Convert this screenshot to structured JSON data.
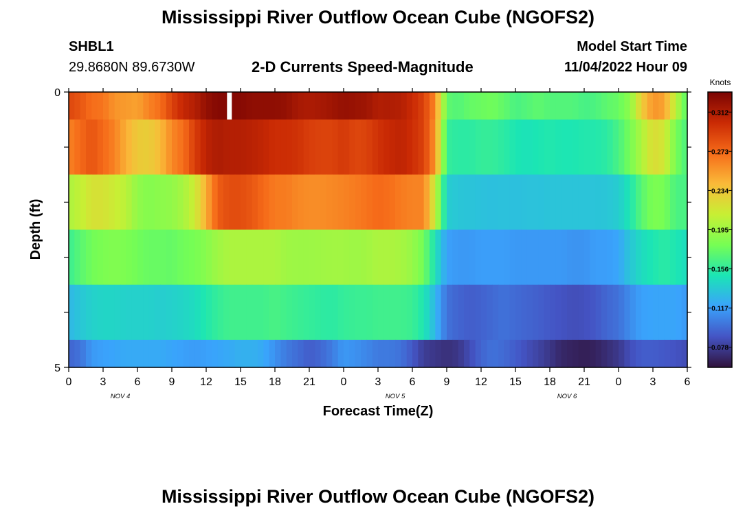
{
  "header": {
    "title": "Mississippi River Outflow Ocean Cube (NGOFS2)",
    "station_id": "SHBL1",
    "coordinates": "29.8680N  89.6730W",
    "plot_title": "2-D Currents Speed-Magnitude",
    "model_start_label": "Model Start Time",
    "model_start_value": "11/04/2022 Hour 09"
  },
  "footer": {
    "title": "Mississippi River Outflow Ocean Cube (NGOFS2)"
  },
  "chart_data": {
    "type": "heatmap",
    "xlabel": "Forecast Time(Z)",
    "ylabel": "Depth (ft)",
    "ylim": [
      0,
      5
    ],
    "y_ticks": [
      "0",
      "5"
    ],
    "x_tick_labels": [
      "0",
      "3",
      "6",
      "9",
      "12",
      "15",
      "18",
      "21",
      "0",
      "3",
      "6",
      "9",
      "12",
      "15",
      "18",
      "21",
      "0",
      "3",
      "6"
    ],
    "date_labels": [
      {
        "label": "NOV 4",
        "tick_index": 1.5
      },
      {
        "label": "NOV 5",
        "tick_index": 9.5
      },
      {
        "label": "NOV 6",
        "tick_index": 14.5
      }
    ],
    "x_unit_hours": 3,
    "x_range_hours": [
      0,
      54
    ],
    "y_band_edges": [
      0,
      0.5,
      1.5,
      2.5,
      3.5,
      4.5,
      5
    ],
    "color_scale": {
      "label": "Knots",
      "ticks": [
        "0.312",
        "0.273",
        "0.234",
        "0.195",
        "0.156",
        "0.117",
        "0.078"
      ],
      "tick_values": [
        0.312,
        0.273,
        0.234,
        0.195,
        0.156,
        0.117,
        0.078
      ],
      "range": [
        0.058,
        0.332
      ],
      "colors": [
        "#30123b",
        "#4454c4",
        "#3aa3fc",
        "#1be5b5",
        "#76fe54",
        "#c8ef34",
        "#faba39",
        "#f66b19",
        "#ca2a04",
        "#7a0403"
      ]
    },
    "missing_value_marker": {
      "x_hours": 14,
      "band": 0
    },
    "keyframes_hours": [
      0,
      1,
      2,
      3,
      4,
      5,
      6,
      7,
      8,
      9,
      10,
      11,
      12,
      13,
      14,
      15,
      16,
      17,
      18,
      19,
      20,
      21,
      22,
      23,
      24,
      25,
      26,
      27,
      28,
      29,
      30,
      31,
      32,
      33,
      34,
      35,
      36,
      37,
      38,
      39,
      40,
      41,
      42,
      43,
      44,
      45,
      46,
      47,
      48,
      49,
      50,
      51,
      52,
      53,
      54
    ],
    "bands": [
      [
        0.288,
        0.281,
        0.27,
        0.268,
        0.255,
        0.253,
        0.25,
        0.262,
        0.27,
        0.29,
        0.304,
        0.31,
        0.322,
        0.328,
        0.328,
        0.327,
        0.324,
        0.324,
        0.324,
        0.322,
        0.315,
        0.313,
        0.315,
        0.318,
        0.322,
        0.32,
        0.318,
        0.311,
        0.312,
        0.31,
        0.302,
        0.29,
        0.26,
        0.172,
        0.168,
        0.174,
        0.176,
        0.178,
        0.173,
        0.165,
        0.168,
        0.172,
        0.168,
        0.168,
        0.168,
        0.164,
        0.166,
        0.172,
        0.175,
        0.188,
        0.23,
        0.255,
        0.25,
        0.205,
        0.168
      ],
      [
        0.262,
        0.272,
        0.282,
        0.272,
        0.262,
        0.245,
        0.232,
        0.23,
        0.24,
        0.26,
        0.27,
        0.292,
        0.307,
        0.313,
        0.31,
        0.31,
        0.308,
        0.305,
        0.3,
        0.3,
        0.298,
        0.292,
        0.29,
        0.29,
        0.295,
        0.288,
        0.29,
        0.298,
        0.303,
        0.306,
        0.3,
        0.29,
        0.255,
        0.158,
        0.155,
        0.155,
        0.158,
        0.158,
        0.155,
        0.15,
        0.148,
        0.15,
        0.152,
        0.15,
        0.15,
        0.152,
        0.152,
        0.155,
        0.165,
        0.18,
        0.2,
        0.222,
        0.215,
        0.18,
        0.165
      ],
      [
        0.2,
        0.208,
        0.218,
        0.218,
        0.212,
        0.205,
        0.19,
        0.185,
        0.188,
        0.19,
        0.198,
        0.212,
        0.245,
        0.278,
        0.285,
        0.285,
        0.28,
        0.272,
        0.265,
        0.265,
        0.26,
        0.258,
        0.258,
        0.26,
        0.262,
        0.265,
        0.268,
        0.272,
        0.27,
        0.265,
        0.262,
        0.262,
        0.21,
        0.138,
        0.135,
        0.134,
        0.133,
        0.132,
        0.133,
        0.132,
        0.133,
        0.133,
        0.134,
        0.134,
        0.134,
        0.134,
        0.134,
        0.135,
        0.138,
        0.15,
        0.17,
        0.182,
        0.18,
        0.165,
        0.165
      ],
      [
        0.16,
        0.17,
        0.178,
        0.182,
        0.184,
        0.182,
        0.178,
        0.175,
        0.175,
        0.174,
        0.178,
        0.18,
        0.186,
        0.195,
        0.2,
        0.2,
        0.2,
        0.2,
        0.2,
        0.195,
        0.194,
        0.194,
        0.195,
        0.196,
        0.196,
        0.194,
        0.196,
        0.2,
        0.2,
        0.198,
        0.192,
        0.178,
        0.148,
        0.118,
        0.115,
        0.115,
        0.117,
        0.117,
        0.117,
        0.115,
        0.115,
        0.115,
        0.115,
        0.115,
        0.113,
        0.113,
        0.117,
        0.117,
        0.12,
        0.135,
        0.145,
        0.15,
        0.155,
        0.15,
        0.145
      ],
      [
        0.128,
        0.135,
        0.14,
        0.142,
        0.142,
        0.14,
        0.14,
        0.14,
        0.138,
        0.14,
        0.142,
        0.145,
        0.152,
        0.158,
        0.162,
        0.162,
        0.162,
        0.162,
        0.165,
        0.162,
        0.16,
        0.158,
        0.156,
        0.155,
        0.158,
        0.16,
        0.16,
        0.162,
        0.162,
        0.162,
        0.16,
        0.15,
        0.128,
        0.1,
        0.095,
        0.092,
        0.094,
        0.097,
        0.1,
        0.097,
        0.095,
        0.093,
        0.09,
        0.088,
        0.086,
        0.087,
        0.09,
        0.096,
        0.1,
        0.11,
        0.118,
        0.12,
        0.12,
        0.12,
        0.115
      ],
      [
        0.095,
        0.1,
        0.115,
        0.118,
        0.12,
        0.122,
        0.122,
        0.122,
        0.122,
        0.12,
        0.118,
        0.116,
        0.118,
        0.12,
        0.122,
        0.125,
        0.125,
        0.122,
        0.112,
        0.103,
        0.098,
        0.092,
        0.096,
        0.104,
        0.115,
        0.112,
        0.108,
        0.103,
        0.103,
        0.1,
        0.09,
        0.078,
        0.075,
        0.072,
        0.075,
        0.085,
        0.095,
        0.1,
        0.097,
        0.092,
        0.086,
        0.081,
        0.075,
        0.068,
        0.066,
        0.064,
        0.066,
        0.071,
        0.076,
        0.086,
        0.092,
        0.092,
        0.09,
        0.088,
        0.085
      ]
    ]
  }
}
